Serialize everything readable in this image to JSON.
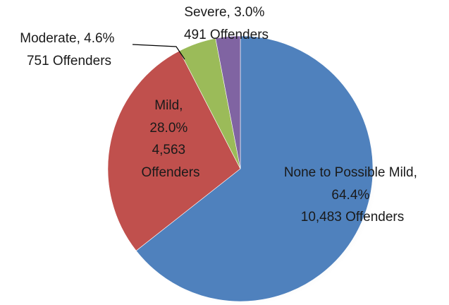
{
  "chart_data": {
    "type": "pie",
    "title": "",
    "legend": "none",
    "slices": [
      {
        "category": "None to Possible Mild",
        "percent": 64.4,
        "percent_label": "64.4%",
        "offenders": 10483,
        "count_label": "10,483 Offenders",
        "color": "#4F81BD"
      },
      {
        "category": "Mild",
        "percent": 28.0,
        "percent_label": "28.0%",
        "offenders": 4563,
        "count_label": "4,563 Offenders",
        "color": "#C0504D"
      },
      {
        "category": "Moderate",
        "percent": 4.6,
        "percent_label": "4.6%",
        "offenders": 751,
        "count_label": "751 Offenders",
        "color": "#9BBB59"
      },
      {
        "category": "Severe",
        "percent": 3.0,
        "percent_label": "3.0%",
        "offenders": 491,
        "count_label": "491 Offenders",
        "color": "#8064A2"
      }
    ]
  }
}
